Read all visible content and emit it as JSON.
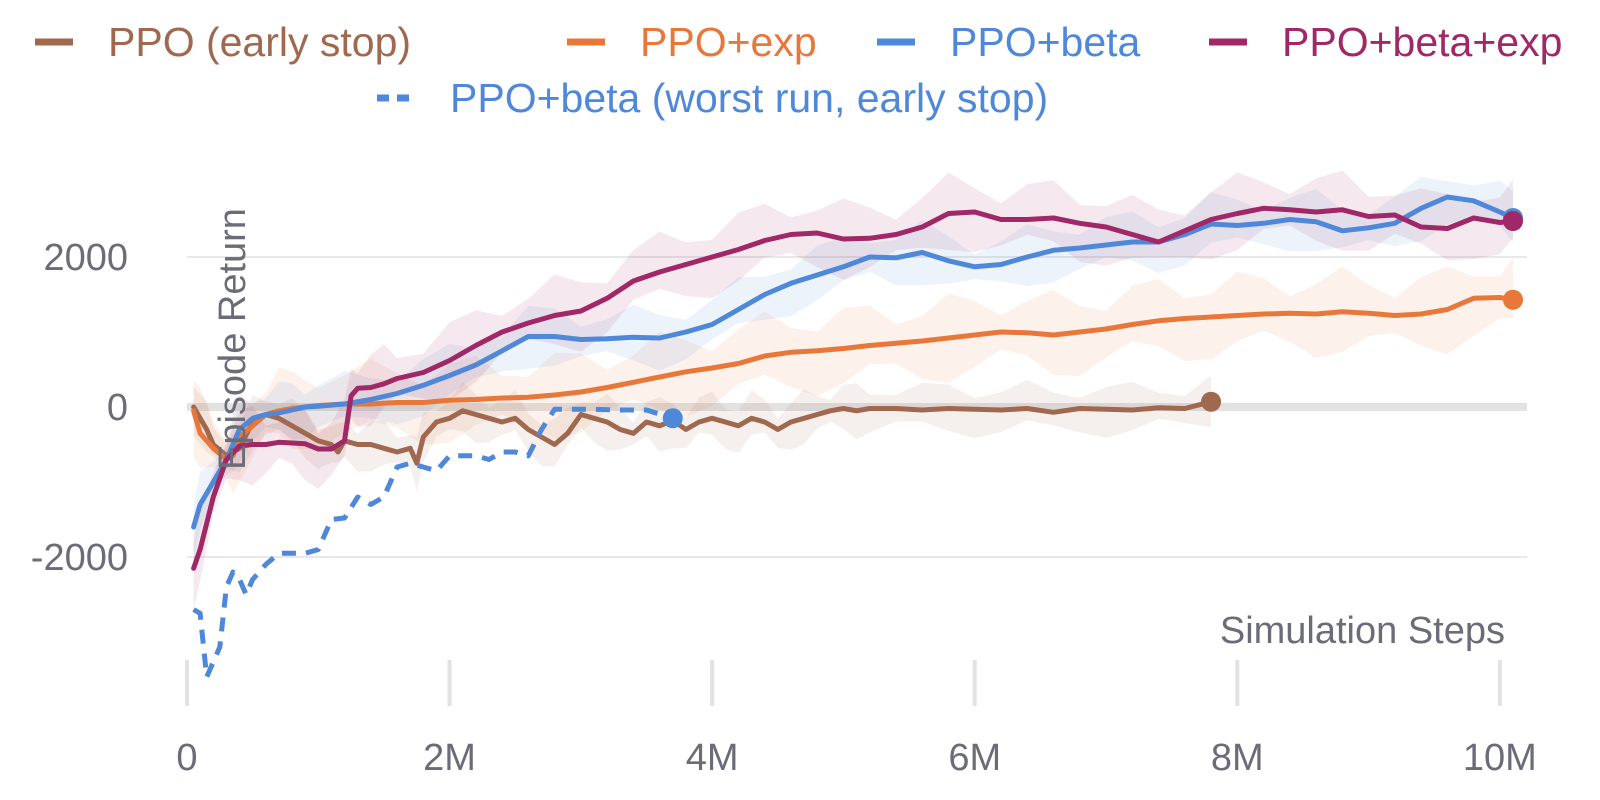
{
  "chart_data": {
    "type": "line",
    "title": "",
    "xlabel": "Simulation Steps",
    "ylabel": "Episode Return",
    "xlim": [
      0,
      10100000
    ],
    "ylim": [
      -3700,
      3500
    ],
    "x_ticks": [
      {
        "value": 0,
        "label": "0"
      },
      {
        "value": 2000000,
        "label": "2M"
      },
      {
        "value": 4000000,
        "label": "4M"
      },
      {
        "value": 6000000,
        "label": "6M"
      },
      {
        "value": 8000000,
        "label": "8M"
      },
      {
        "value": 10000000,
        "label": "10M"
      }
    ],
    "y_ticks": [
      {
        "value": -2000,
        "label": "-2000"
      },
      {
        "value": 0,
        "label": "0"
      },
      {
        "value": 2000,
        "label": "2000"
      }
    ],
    "grid": "horizontal",
    "legend": "top",
    "series": [
      {
        "name": "PPO (early stop)",
        "color": "#a0694f",
        "dash": false,
        "end_marker": true,
        "band_width": 350,
        "points": [
          [
            50000,
            0
          ],
          [
            150000,
            -300
          ],
          [
            200000,
            -500
          ],
          [
            300000,
            -650
          ],
          [
            400000,
            -550
          ],
          [
            500000,
            -200
          ],
          [
            600000,
            -100
          ],
          [
            700000,
            -150
          ],
          [
            800000,
            -250
          ],
          [
            900000,
            -350
          ],
          [
            1000000,
            -450
          ],
          [
            1100000,
            -500
          ],
          [
            1150000,
            -600
          ],
          [
            1200000,
            -450
          ],
          [
            1300000,
            -500
          ],
          [
            1400000,
            -500
          ],
          [
            1500000,
            -550
          ],
          [
            1600000,
            -600
          ],
          [
            1700000,
            -550
          ],
          [
            1750000,
            -750
          ],
          [
            1800000,
            -400
          ],
          [
            1900000,
            -200
          ],
          [
            2000000,
            -150
          ],
          [
            2100000,
            -50
          ],
          [
            2200000,
            -100
          ],
          [
            2300000,
            -150
          ],
          [
            2400000,
            -200
          ],
          [
            2500000,
            -150
          ],
          [
            2600000,
            -300
          ],
          [
            2700000,
            -400
          ],
          [
            2800000,
            -500
          ],
          [
            2900000,
            -350
          ],
          [
            3000000,
            -100
          ],
          [
            3100000,
            -150
          ],
          [
            3200000,
            -200
          ],
          [
            3300000,
            -300
          ],
          [
            3400000,
            -350
          ],
          [
            3500000,
            -200
          ],
          [
            3600000,
            -250
          ],
          [
            3700000,
            -180
          ],
          [
            3800000,
            -300
          ],
          [
            3900000,
            -200
          ],
          [
            4000000,
            -150
          ],
          [
            4100000,
            -200
          ],
          [
            4200000,
            -250
          ],
          [
            4300000,
            -150
          ],
          [
            4400000,
            -200
          ],
          [
            4500000,
            -300
          ],
          [
            4600000,
            -200
          ],
          [
            4700000,
            -150
          ],
          [
            4800000,
            -100
          ],
          [
            4900000,
            -50
          ],
          [
            5000000,
            -20
          ],
          [
            5100000,
            -50
          ],
          [
            5200000,
            -20
          ],
          [
            5400000,
            -20
          ],
          [
            5600000,
            -40
          ],
          [
            5800000,
            -20
          ],
          [
            6000000,
            -30
          ],
          [
            6200000,
            -40
          ],
          [
            6400000,
            -20
          ],
          [
            6600000,
            -70
          ],
          [
            6800000,
            -20
          ],
          [
            7000000,
            -30
          ],
          [
            7200000,
            -40
          ],
          [
            7400000,
            -10
          ],
          [
            7600000,
            -20
          ],
          [
            7800000,
            70
          ]
        ]
      },
      {
        "name": "PPO+exp",
        "color": "#e8773a",
        "dash": false,
        "end_marker": true,
        "band_width": 550,
        "points": [
          [
            50000,
            -50
          ],
          [
            100000,
            -350
          ],
          [
            200000,
            -550
          ],
          [
            300000,
            -700
          ],
          [
            350000,
            -650
          ],
          [
            400000,
            -400
          ],
          [
            500000,
            -250
          ],
          [
            600000,
            -100
          ],
          [
            700000,
            -50
          ],
          [
            800000,
            -20
          ],
          [
            1000000,
            20
          ],
          [
            1200000,
            40
          ],
          [
            1400000,
            40
          ],
          [
            1600000,
            60
          ],
          [
            1800000,
            60
          ],
          [
            2000000,
            90
          ],
          [
            2200000,
            100
          ],
          [
            2400000,
            120
          ],
          [
            2600000,
            130
          ],
          [
            2800000,
            160
          ],
          [
            3000000,
            200
          ],
          [
            3200000,
            260
          ],
          [
            3400000,
            330
          ],
          [
            3600000,
            400
          ],
          [
            3800000,
            470
          ],
          [
            4000000,
            520
          ],
          [
            4200000,
            580
          ],
          [
            4400000,
            680
          ],
          [
            4600000,
            730
          ],
          [
            4800000,
            750
          ],
          [
            5000000,
            780
          ],
          [
            5200000,
            820
          ],
          [
            5400000,
            850
          ],
          [
            5600000,
            880
          ],
          [
            5800000,
            920
          ],
          [
            6000000,
            960
          ],
          [
            6200000,
            1000
          ],
          [
            6400000,
            990
          ],
          [
            6600000,
            960
          ],
          [
            6800000,
            1000
          ],
          [
            7000000,
            1040
          ],
          [
            7200000,
            1100
          ],
          [
            7400000,
            1150
          ],
          [
            7600000,
            1180
          ],
          [
            7800000,
            1200
          ],
          [
            8000000,
            1220
          ],
          [
            8200000,
            1240
          ],
          [
            8400000,
            1250
          ],
          [
            8600000,
            1240
          ],
          [
            8800000,
            1270
          ],
          [
            9000000,
            1250
          ],
          [
            9200000,
            1220
          ],
          [
            9400000,
            1240
          ],
          [
            9600000,
            1300
          ],
          [
            9800000,
            1450
          ],
          [
            10000000,
            1460
          ],
          [
            10100000,
            1430
          ]
        ]
      },
      {
        "name": "PPO+beta",
        "color": "#4f88d9",
        "dash": false,
        "end_marker": true,
        "band_width": 400,
        "points": [
          [
            50000,
            -1600
          ],
          [
            100000,
            -1300
          ],
          [
            200000,
            -1000
          ],
          [
            300000,
            -700
          ],
          [
            350000,
            -500
          ],
          [
            400000,
            -300
          ],
          [
            500000,
            -150
          ],
          [
            600000,
            -100
          ],
          [
            700000,
            -80
          ],
          [
            800000,
            -40
          ],
          [
            900000,
            0
          ],
          [
            1000000,
            10
          ],
          [
            1200000,
            40
          ],
          [
            1400000,
            100
          ],
          [
            1600000,
            180
          ],
          [
            1800000,
            290
          ],
          [
            2000000,
            420
          ],
          [
            2200000,
            560
          ],
          [
            2400000,
            750
          ],
          [
            2600000,
            940
          ],
          [
            2800000,
            940
          ],
          [
            3000000,
            900
          ],
          [
            3200000,
            910
          ],
          [
            3400000,
            930
          ],
          [
            3600000,
            920
          ],
          [
            3800000,
            1000
          ],
          [
            4000000,
            1100
          ],
          [
            4200000,
            1300
          ],
          [
            4400000,
            1500
          ],
          [
            4600000,
            1650
          ],
          [
            4800000,
            1760
          ],
          [
            5000000,
            1870
          ],
          [
            5200000,
            2000
          ],
          [
            5400000,
            1990
          ],
          [
            5600000,
            2060
          ],
          [
            5800000,
            1950
          ],
          [
            6000000,
            1870
          ],
          [
            6200000,
            1900
          ],
          [
            6400000,
            2000
          ],
          [
            6600000,
            2090
          ],
          [
            6800000,
            2120
          ],
          [
            7000000,
            2160
          ],
          [
            7200000,
            2200
          ],
          [
            7400000,
            2200
          ],
          [
            7600000,
            2300
          ],
          [
            7800000,
            2440
          ],
          [
            8000000,
            2420
          ],
          [
            8200000,
            2450
          ],
          [
            8400000,
            2500
          ],
          [
            8600000,
            2470
          ],
          [
            8800000,
            2350
          ],
          [
            9000000,
            2390
          ],
          [
            9200000,
            2450
          ],
          [
            9400000,
            2650
          ],
          [
            9600000,
            2800
          ],
          [
            9800000,
            2750
          ],
          [
            10000000,
            2600
          ],
          [
            10100000,
            2520
          ]
        ]
      },
      {
        "name": "PPO+beta+exp",
        "color": "#a02866",
        "dash": false,
        "end_marker": true,
        "band_width": 500,
        "points": [
          [
            50000,
            -2150
          ],
          [
            100000,
            -1900
          ],
          [
            200000,
            -1200
          ],
          [
            300000,
            -700
          ],
          [
            400000,
            -520
          ],
          [
            500000,
            -500
          ],
          [
            600000,
            -500
          ],
          [
            700000,
            -470
          ],
          [
            800000,
            -480
          ],
          [
            900000,
            -490
          ],
          [
            1000000,
            -560
          ],
          [
            1100000,
            -560
          ],
          [
            1200000,
            -450
          ],
          [
            1250000,
            150
          ],
          [
            1300000,
            250
          ],
          [
            1400000,
            260
          ],
          [
            1500000,
            310
          ],
          [
            1600000,
            380
          ],
          [
            1800000,
            460
          ],
          [
            2000000,
            620
          ],
          [
            2200000,
            820
          ],
          [
            2400000,
            1000
          ],
          [
            2600000,
            1120
          ],
          [
            2800000,
            1220
          ],
          [
            3000000,
            1280
          ],
          [
            3200000,
            1450
          ],
          [
            3400000,
            1680
          ],
          [
            3600000,
            1800
          ],
          [
            3800000,
            1900
          ],
          [
            4000000,
            2000
          ],
          [
            4200000,
            2100
          ],
          [
            4400000,
            2220
          ],
          [
            4600000,
            2300
          ],
          [
            4800000,
            2320
          ],
          [
            5000000,
            2240
          ],
          [
            5200000,
            2250
          ],
          [
            5400000,
            2300
          ],
          [
            5600000,
            2400
          ],
          [
            5800000,
            2580
          ],
          [
            6000000,
            2600
          ],
          [
            6200000,
            2500
          ],
          [
            6400000,
            2500
          ],
          [
            6600000,
            2520
          ],
          [
            6800000,
            2450
          ],
          [
            7000000,
            2400
          ],
          [
            7200000,
            2300
          ],
          [
            7400000,
            2200
          ],
          [
            7600000,
            2350
          ],
          [
            7800000,
            2500
          ],
          [
            8000000,
            2580
          ],
          [
            8200000,
            2650
          ],
          [
            8400000,
            2630
          ],
          [
            8600000,
            2600
          ],
          [
            8800000,
            2630
          ],
          [
            9000000,
            2540
          ],
          [
            9200000,
            2560
          ],
          [
            9400000,
            2400
          ],
          [
            9600000,
            2380
          ],
          [
            9800000,
            2520
          ],
          [
            10000000,
            2460
          ],
          [
            10100000,
            2480
          ]
        ]
      },
      {
        "name": "PPO+beta (worst run, early stop)",
        "color": "#4f88d9",
        "dash": true,
        "end_marker": true,
        "band_width": 0,
        "points": [
          [
            50000,
            -2700
          ],
          [
            100000,
            -2750
          ],
          [
            150000,
            -3600
          ],
          [
            200000,
            -3400
          ],
          [
            250000,
            -3200
          ],
          [
            300000,
            -2400
          ],
          [
            350000,
            -2200
          ],
          [
            400000,
            -2300
          ],
          [
            450000,
            -2500
          ],
          [
            500000,
            -2300
          ],
          [
            600000,
            -2100
          ],
          [
            700000,
            -1950
          ],
          [
            800000,
            -1950
          ],
          [
            900000,
            -1950
          ],
          [
            1000000,
            -1900
          ],
          [
            1100000,
            -1500
          ],
          [
            1200000,
            -1480
          ],
          [
            1300000,
            -1200
          ],
          [
            1400000,
            -1300
          ],
          [
            1500000,
            -1200
          ],
          [
            1600000,
            -800
          ],
          [
            1700000,
            -750
          ],
          [
            1800000,
            -800
          ],
          [
            1900000,
            -850
          ],
          [
            2000000,
            -650
          ],
          [
            2100000,
            -650
          ],
          [
            2200000,
            -650
          ],
          [
            2300000,
            -700
          ],
          [
            2400000,
            -600
          ],
          [
            2500000,
            -600
          ],
          [
            2600000,
            -650
          ],
          [
            2700000,
            -300
          ],
          [
            2800000,
            -30
          ],
          [
            2900000,
            -30
          ],
          [
            3100000,
            -30
          ],
          [
            3300000,
            -40
          ],
          [
            3500000,
            -40
          ],
          [
            3700000,
            -150
          ]
        ]
      }
    ]
  }
}
